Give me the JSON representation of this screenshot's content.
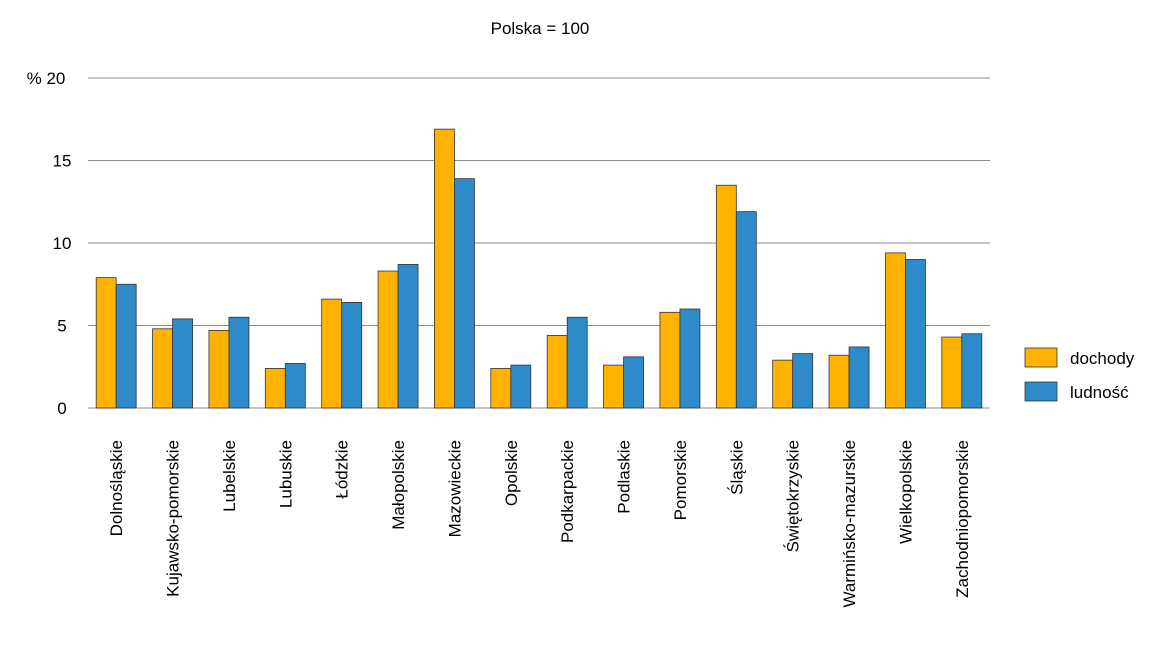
{
  "chart_data": {
    "type": "bar",
    "title": "Polska = 100",
    "ylabel": "",
    "xlabel": "",
    "y_unit_label": "%",
    "ylim": [
      0,
      20
    ],
    "yticks": [
      0,
      5,
      10,
      15,
      20
    ],
    "grid": true,
    "legend_position": "right",
    "categories": [
      "Dolnośląskie",
      "Kujawsko-pomorskie",
      "Lubelskie",
      "Lubuskie",
      "Łódzkie",
      "Małopolskie",
      "Mazowieckie",
      "Opolskie",
      "Podkarpackie",
      "Podlaskie",
      "Pomorskie",
      "Śląskie",
      "Świętokrzyskie",
      "Warmińsko-mazurskie",
      "Wielkopolskie",
      "Zachodniopomorskie"
    ],
    "series": [
      {
        "name": "dochody",
        "color": "#FFB300",
        "values": [
          7.9,
          4.8,
          4.7,
          2.4,
          6.6,
          8.3,
          16.9,
          2.4,
          4.4,
          2.6,
          5.8,
          13.5,
          2.9,
          3.2,
          9.4,
          4.3
        ]
      },
      {
        "name": "ludność",
        "color": "#2E8BC9",
        "values": [
          7.5,
          5.4,
          5.5,
          2.7,
          6.4,
          8.7,
          13.9,
          2.6,
          5.5,
          3.1,
          6.0,
          11.9,
          3.3,
          3.7,
          9.0,
          4.5
        ]
      }
    ]
  }
}
